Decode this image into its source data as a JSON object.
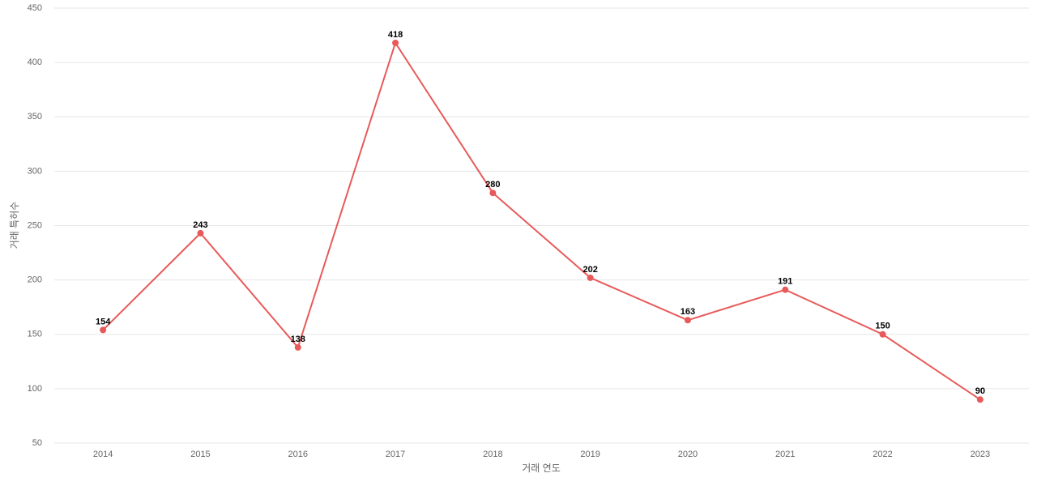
{
  "chart_data": {
    "type": "line",
    "x_label": "거래 연도",
    "y_label": "거래 특허수",
    "categories": [
      "2014",
      "2015",
      "2016",
      "2017",
      "2018",
      "2019",
      "2020",
      "2021",
      "2022",
      "2023"
    ],
    "series": [
      {
        "name": "거래 특허수",
        "color": "#e85a5a",
        "values": [
          154,
          243,
          138,
          418,
          280,
          202,
          163,
          191,
          150,
          90
        ]
      }
    ],
    "ylim": [
      50,
      450
    ],
    "yticks": [
      50,
      100,
      150,
      200,
      250,
      300,
      350,
      400,
      450
    ],
    "grid": true
  }
}
